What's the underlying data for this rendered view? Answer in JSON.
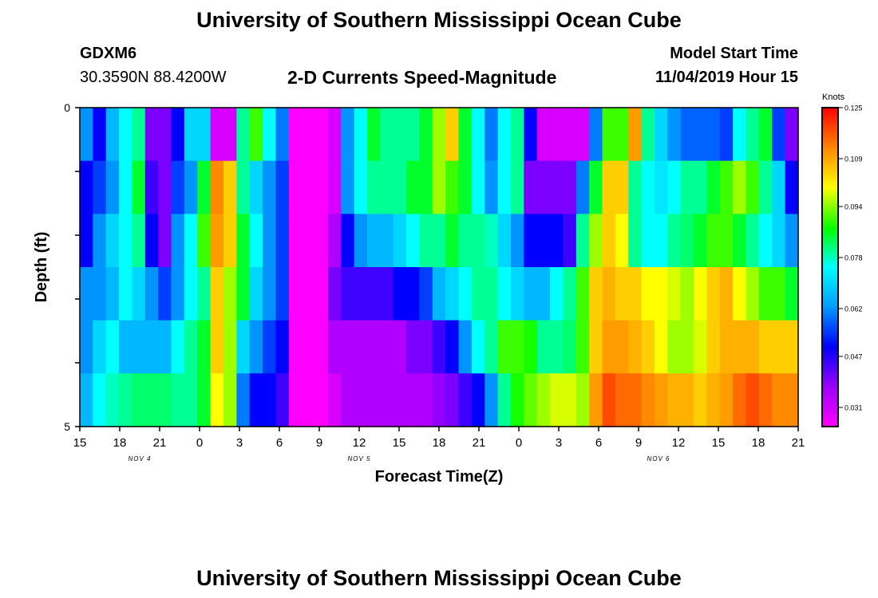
{
  "header": {
    "title": "University of Southern Mississippi Ocean Cube",
    "station_id": "GDXM6",
    "coordinates": "30.3590N 88.4200W",
    "subtitle": "2-D Currents Speed-Magnitude",
    "model_start_label": "Model Start Time",
    "model_start_value": "11/04/2019 Hour 15"
  },
  "footer": {
    "title": "University of Southern Mississippi Ocean Cube"
  },
  "chart_data": {
    "type": "heatmap",
    "title": "2-D Currents Speed-Magnitude",
    "xlabel": "Forecast Time(Z)",
    "ylabel": "Depth (ft)",
    "x_tick_labels": [
      "15",
      "18",
      "21",
      "0",
      "3",
      "6",
      "9",
      "12",
      "15",
      "18",
      "21",
      "0",
      "3",
      "6",
      "9",
      "12",
      "15",
      "18",
      "21"
    ],
    "date_labels": [
      {
        "label": "NOV 4",
        "at_tick": 1.5
      },
      {
        "label": "NOV 5",
        "at_tick": 7
      },
      {
        "label": "NOV 6",
        "at_tick": 14.5
      }
    ],
    "y_tick_labels": [
      "0",
      "5"
    ],
    "ylim": [
      0,
      5
    ],
    "colorbar": {
      "unit": "Knots",
      "labels": [
        "0.125",
        "0.109",
        "0.094",
        "0.078",
        "0.062",
        "0.047",
        "0.031"
      ],
      "min": 0.025,
      "max": 0.125
    },
    "grid": false,
    "rows_depth_top_to_bottom": [
      0,
      1,
      2,
      3,
      4,
      5
    ],
    "x_hours": [
      0,
      1,
      2,
      3,
      4,
      5,
      6,
      7,
      8,
      9,
      10,
      11,
      12,
      13,
      14,
      15,
      16,
      17,
      18,
      19,
      20,
      21,
      22,
      23,
      24,
      25,
      26,
      27,
      28,
      29,
      30,
      31,
      32,
      33,
      34,
      35,
      36,
      37,
      38,
      39,
      40,
      41,
      42,
      43,
      44,
      45,
      46,
      47,
      48,
      49,
      50,
      51,
      52,
      53,
      54
    ],
    "values": [
      [
        0.062,
        0.05,
        0.066,
        0.075,
        0.08,
        0.04,
        0.04,
        0.05,
        0.07,
        0.07,
        0.03,
        0.03,
        0.08,
        0.09,
        0.075,
        0.06,
        0.025,
        0.025,
        0.025,
        0.03,
        0.062,
        0.075,
        0.085,
        0.08,
        0.08,
        0.08,
        0.085,
        0.095,
        0.105,
        0.085,
        0.075,
        0.06,
        0.075,
        0.08,
        0.05,
        0.03,
        0.03,
        0.03,
        0.03,
        0.06,
        0.09,
        0.09,
        0.11,
        0.08,
        0.07,
        0.062,
        0.058,
        0.058,
        0.058,
        0.055,
        0.075,
        0.08,
        0.085,
        0.055,
        0.04
      ],
      [
        0.05,
        0.055,
        0.062,
        0.075,
        0.085,
        0.045,
        0.04,
        0.055,
        0.062,
        0.085,
        0.112,
        0.105,
        0.08,
        0.07,
        0.062,
        0.055,
        0.025,
        0.025,
        0.025,
        0.03,
        0.062,
        0.075,
        0.08,
        0.08,
        0.08,
        0.085,
        0.085,
        0.095,
        0.09,
        0.085,
        0.075,
        0.062,
        0.075,
        0.08,
        0.04,
        0.04,
        0.04,
        0.04,
        0.06,
        0.085,
        0.105,
        0.105,
        0.08,
        0.075,
        0.072,
        0.075,
        0.08,
        0.08,
        0.085,
        0.09,
        0.095,
        0.09,
        0.08,
        0.07,
        0.05
      ],
      [
        0.05,
        0.062,
        0.07,
        0.075,
        0.08,
        0.05,
        0.04,
        0.062,
        0.075,
        0.09,
        0.11,
        0.105,
        0.085,
        0.075,
        0.062,
        0.055,
        0.025,
        0.025,
        0.025,
        0.035,
        0.05,
        0.062,
        0.066,
        0.066,
        0.07,
        0.075,
        0.08,
        0.08,
        0.085,
        0.08,
        0.08,
        0.078,
        0.07,
        0.062,
        0.05,
        0.05,
        0.05,
        0.045,
        0.08,
        0.095,
        0.105,
        0.1,
        0.08,
        0.075,
        0.075,
        0.08,
        0.082,
        0.085,
        0.09,
        0.09,
        0.085,
        0.08,
        0.075,
        0.07,
        0.062
      ],
      [
        0.062,
        0.062,
        0.066,
        0.075,
        0.07,
        0.062,
        0.055,
        0.062,
        0.075,
        0.08,
        0.105,
        0.095,
        0.085,
        0.07,
        0.062,
        0.055,
        0.025,
        0.025,
        0.025,
        0.04,
        0.045,
        0.045,
        0.045,
        0.045,
        0.05,
        0.05,
        0.055,
        0.066,
        0.07,
        0.075,
        0.08,
        0.08,
        0.075,
        0.07,
        0.066,
        0.066,
        0.075,
        0.08,
        0.09,
        0.105,
        0.108,
        0.105,
        0.105,
        0.1,
        0.1,
        0.098,
        0.095,
        0.1,
        0.105,
        0.108,
        0.1,
        0.095,
        0.09,
        0.09,
        0.085
      ],
      [
        0.062,
        0.07,
        0.075,
        0.066,
        0.066,
        0.066,
        0.066,
        0.075,
        0.08,
        0.085,
        0.105,
        0.095,
        0.07,
        0.062,
        0.055,
        0.05,
        0.025,
        0.025,
        0.025,
        0.035,
        0.035,
        0.035,
        0.035,
        0.035,
        0.035,
        0.04,
        0.04,
        0.045,
        0.05,
        0.062,
        0.075,
        0.08,
        0.09,
        0.09,
        0.088,
        0.08,
        0.08,
        0.082,
        0.09,
        0.105,
        0.11,
        0.11,
        0.108,
        0.105,
        0.1,
        0.095,
        0.095,
        0.098,
        0.105,
        0.108,
        0.108,
        0.108,
        0.105,
        0.105,
        0.105
      ],
      [
        0.066,
        0.075,
        0.078,
        0.08,
        0.082,
        0.082,
        0.082,
        0.08,
        0.08,
        0.085,
        0.1,
        0.095,
        0.06,
        0.05,
        0.05,
        0.045,
        0.025,
        0.025,
        0.025,
        0.03,
        0.035,
        0.035,
        0.035,
        0.035,
        0.035,
        0.035,
        0.035,
        0.038,
        0.04,
        0.045,
        0.05,
        0.062,
        0.08,
        0.088,
        0.092,
        0.095,
        0.098,
        0.098,
        0.095,
        0.11,
        0.118,
        0.115,
        0.115,
        0.112,
        0.11,
        0.108,
        0.108,
        0.105,
        0.108,
        0.11,
        0.115,
        0.118,
        0.115,
        0.112,
        0.112
      ]
    ]
  }
}
